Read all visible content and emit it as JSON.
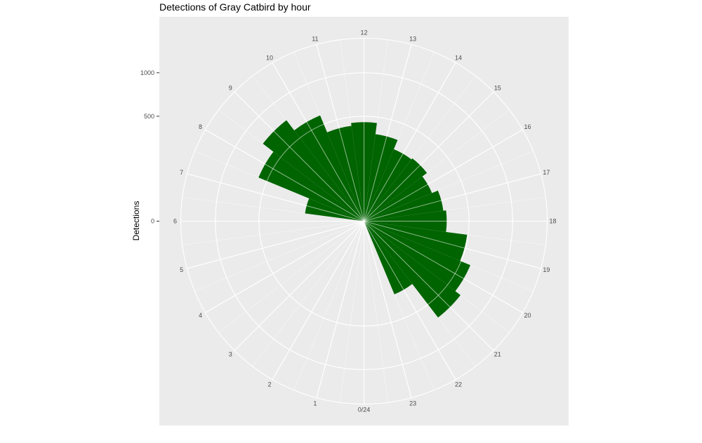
{
  "chart_data": {
    "type": "bar",
    "coord": "polar",
    "title": "Detections of Gray Catbird by hour",
    "xlabel": "",
    "ylabel": "Detections",
    "y_ticks": [
      0,
      500,
      1000
    ],
    "hour_labels": [
      "0/24",
      "1",
      "2",
      "3",
      "4",
      "5",
      "6",
      "7",
      "8",
      "9",
      "10",
      "11",
      "12",
      "13",
      "14",
      "15",
      "16",
      "17",
      "18",
      "19",
      "20",
      "21",
      "22",
      "23"
    ],
    "categories": [
      0,
      1,
      2,
      3,
      4,
      5,
      6,
      7,
      8,
      9,
      10,
      11,
      12,
      13,
      14,
      15,
      16,
      17,
      18,
      19,
      20,
      21,
      22,
      23
    ],
    "values": [
      0,
      0,
      0,
      0,
      0,
      0,
      0,
      160,
      590,
      735,
      595,
      420,
      445,
      350,
      275,
      285,
      245,
      290,
      310,
      490,
      600,
      670,
      285,
      0
    ],
    "bar_color": "#006400",
    "panel_background": "#ebebeb",
    "grid_color": "#ffffff",
    "grid": true,
    "legend": "none"
  }
}
